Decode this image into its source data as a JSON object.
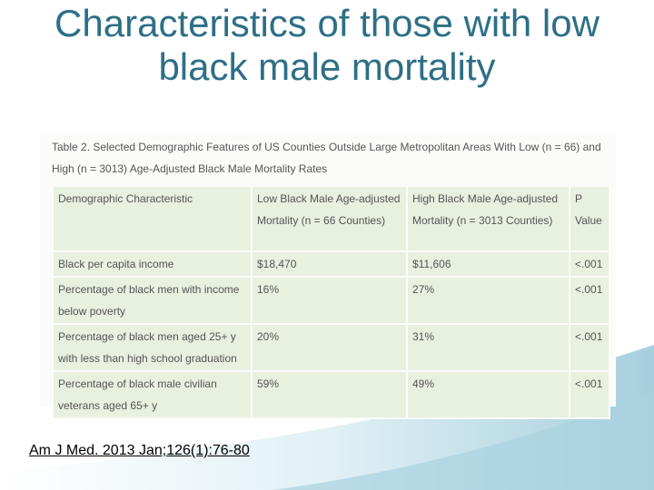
{
  "title": "Characteristics of those with low black male mortality",
  "table": {
    "caption": "Table 2. Selected Demographic Features of US Counties Outside Large Metropolitan Areas With Low (n = 66) and High (n = 3013) Age-Adjusted Black Male Mortality Rates",
    "header": [
      "Demographic Characteristic",
      "Low Black Male Age-adjusted Mortality (n = 66 Counties)",
      "High Black Male Age-adjusted Mortality (n = 3013 Counties)",
      "P Value"
    ],
    "rows": [
      [
        "Black per capita income",
        "$18,470",
        "$11,606",
        "<.001"
      ],
      [
        "Percentage of black men with income below poverty",
        "16%",
        "27%",
        "<.001"
      ],
      [
        "Percentage of black men aged 25+ y with less than high school graduation",
        "20%",
        "31%",
        "<.001"
      ],
      [
        "Percentage of black male civilian veterans aged 65+ y",
        "59%",
        "49%",
        "<.001"
      ]
    ]
  },
  "citation": "Am J Med. 2013 Jan;126(1):76-80"
}
